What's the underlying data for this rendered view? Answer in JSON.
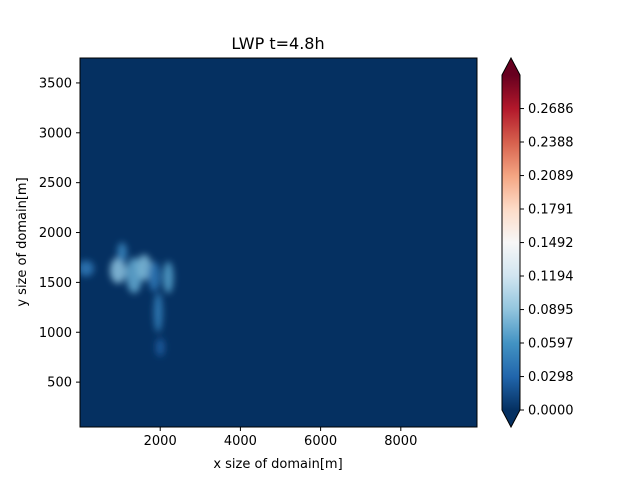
{
  "chart_data": {
    "type": "heatmap",
    "title": "LWP t=4.8h",
    "xlabel": "x size of domain[m]",
    "ylabel": "y size of domain[m]",
    "xlim": [
      0,
      9900
    ],
    "ylim": [
      50,
      3750
    ],
    "x_ticks": [
      2000,
      4000,
      6000,
      8000
    ],
    "y_ticks": [
      500,
      1000,
      1500,
      2000,
      2500,
      3000,
      3500
    ],
    "x_tick_labels": [
      "2000",
      "4000",
      "6000",
      "8000"
    ],
    "y_tick_labels": [
      "500",
      "1000",
      "1500",
      "2000",
      "2500",
      "3000",
      "3500"
    ],
    "colorbar": {
      "colormap": "RdBu_r",
      "min": 0.0,
      "max": 0.2985,
      "extend": "both",
      "ticks": [
        0.0,
        0.0298,
        0.0597,
        0.0895,
        0.1194,
        0.1492,
        0.1791,
        0.2089,
        0.2388,
        0.2686
      ],
      "tick_labels": [
        "0.0000",
        "0.0298",
        "0.0597",
        "0.0895",
        "0.1194",
        "0.1492",
        "0.1791",
        "0.2089",
        "0.2388",
        "0.2686"
      ]
    },
    "background_value": 0.0,
    "cloud_blobs": [
      {
        "x": 150,
        "y": 1640,
        "rx": 200,
        "ry": 80,
        "value": 0.04
      },
      {
        "x": 950,
        "y": 1620,
        "rx": 200,
        "ry": 130,
        "value": 0.085
      },
      {
        "x": 1050,
        "y": 1800,
        "rx": 120,
        "ry": 100,
        "value": 0.05
      },
      {
        "x": 1350,
        "y": 1570,
        "rx": 200,
        "ry": 180,
        "value": 0.07
      },
      {
        "x": 1600,
        "y": 1650,
        "rx": 180,
        "ry": 130,
        "value": 0.08
      },
      {
        "x": 1850,
        "y": 1560,
        "rx": 150,
        "ry": 150,
        "value": 0.04
      },
      {
        "x": 2200,
        "y": 1550,
        "rx": 130,
        "ry": 160,
        "value": 0.065
      },
      {
        "x": 1950,
        "y": 1200,
        "rx": 110,
        "ry": 200,
        "value": 0.045
      },
      {
        "x": 2000,
        "y": 850,
        "rx": 110,
        "ry": 90,
        "value": 0.025
      }
    ],
    "grid": false
  }
}
